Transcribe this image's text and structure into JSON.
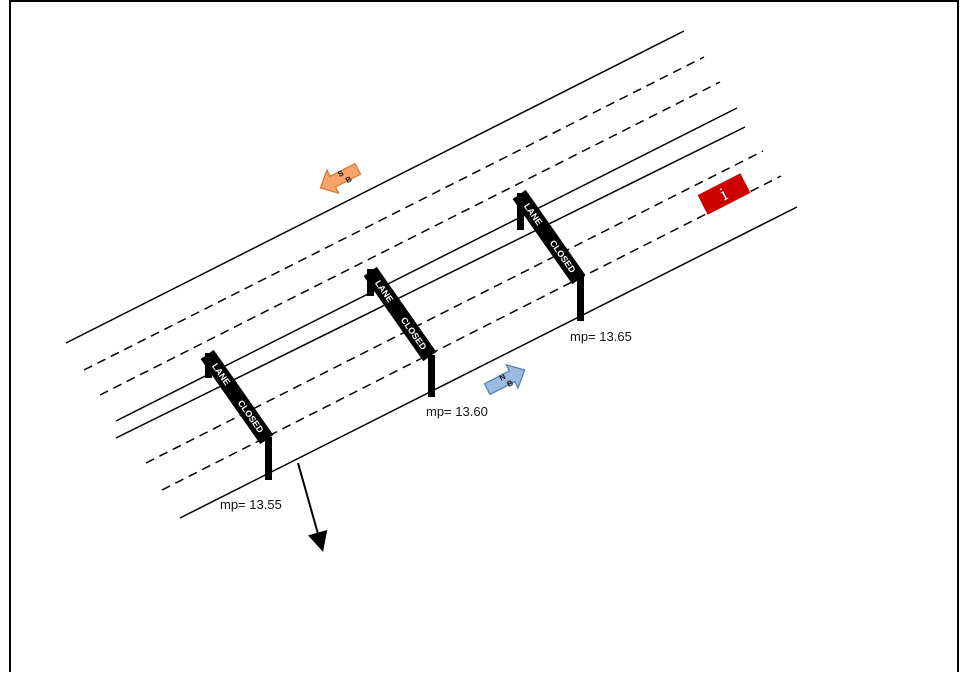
{
  "signs": [
    {
      "line1": "LANE",
      "line2": "CLOSED",
      "milepost": "mp= 13.55"
    },
    {
      "line1": "LANE",
      "line2": "CLOSED",
      "milepost": "mp= 13.60"
    },
    {
      "line1": "LANE",
      "line2": "CLOSED",
      "milepost": "mp= 13.65"
    }
  ],
  "direction_arrows": {
    "southbound": {
      "letter1": "S",
      "letter2": "B",
      "color": "#f5a46a"
    },
    "northbound": {
      "letter1": "N",
      "letter2": "B",
      "color": "#9dbbe0"
    }
  },
  "info_marker": {
    "symbol": "i",
    "color": "#cc0000"
  },
  "colors": {
    "road_line": "#000000",
    "sign": "#000000"
  }
}
